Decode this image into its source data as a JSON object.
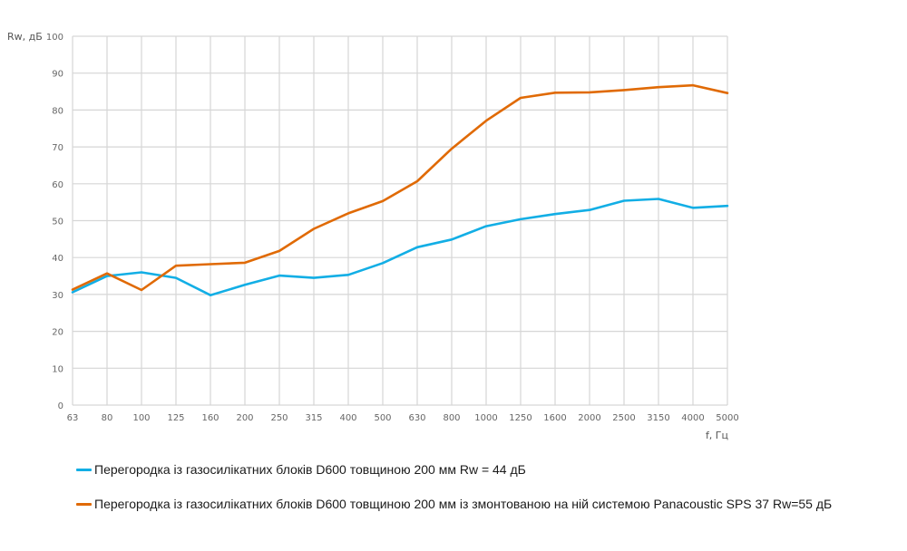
{
  "chart_data": {
    "type": "line",
    "title": "",
    "xlabel": "f, Гц",
    "ylabel": "Rw, дБ",
    "ylim": [
      0,
      100
    ],
    "y_ticks": [
      "0",
      "10",
      "20",
      "30",
      "40",
      "50",
      "60",
      "70",
      "80",
      "90",
      "100"
    ],
    "categories": [
      "63",
      "80",
      "100",
      "125",
      "160",
      "200",
      "250",
      "315",
      "400",
      "500",
      "630",
      "800",
      "1000",
      "1250",
      "1600",
      "2000",
      "2500",
      "3150",
      "4000",
      "5000"
    ],
    "grid": true,
    "legend_position": "bottom",
    "series": [
      {
        "name": "Перегородка із газосилікатних блоків D600 товщиною 200 мм Rw = 44 дБ",
        "color": "#12AEE5",
        "values": [
          30.6,
          35.0,
          36.0,
          34.5,
          29.8,
          32.6,
          35.1,
          34.5,
          35.3,
          38.5,
          42.8,
          44.9,
          48.5,
          50.4,
          51.8,
          52.9,
          55.4,
          55.9,
          53.5,
          54.0
        ]
      },
      {
        "name": "Перегородка із газосилікатних блоків D600 товщиною 200 мм із змонтованою на ній системою Panacoustic SPS 37 Rw=55 дБ",
        "color": "#E06A05",
        "values": [
          31.3,
          35.7,
          31.2,
          37.8,
          38.2,
          38.6,
          41.8,
          47.8,
          52.0,
          55.3,
          60.7,
          69.5,
          77.1,
          83.3,
          84.7,
          84.8,
          85.4,
          86.2,
          86.7,
          84.6
        ]
      }
    ]
  }
}
